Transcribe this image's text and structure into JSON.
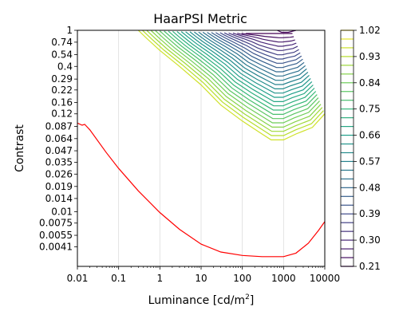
{
  "chart_data": {
    "type": "contour",
    "title": "HaarPSI Metric",
    "xlabel": "Luminance [cd/m",
    "xlabel_sup": "2",
    "xlabel_end": "]",
    "ylabel": "Contrast",
    "xscale": "log",
    "yscale": "log",
    "xlim": [
      0.01,
      10000
    ],
    "ylim": [
      0.0025,
      1
    ],
    "x_ticks": [
      0.01,
      0.1,
      1,
      10,
      100,
      1000,
      10000
    ],
    "x_tick_labels": [
      "0.01",
      "0.1",
      "1",
      "10",
      "100",
      "1000",
      "10000"
    ],
    "y_ticks": [
      1,
      0.74,
      0.54,
      0.4,
      0.29,
      0.22,
      0.16,
      0.12,
      0.087,
      0.064,
      0.047,
      0.035,
      0.026,
      0.019,
      0.014,
      0.01,
      0.0075,
      0.0055,
      0.0041
    ],
    "y_tick_labels": [
      "1",
      "0.74",
      "0.54",
      "0.4",
      "0.29",
      "0.22",
      "0.16",
      "0.12",
      "0.087",
      "0.064",
      "0.047",
      "0.035",
      "0.026",
      "0.019",
      "0.014",
      "0.01",
      "0.0075",
      "0.0055",
      "0.0041"
    ],
    "grid": "vertical",
    "colorbar": {
      "colormap": "viridis",
      "min": 0.21,
      "max": 1.02,
      "levels": 28,
      "tick_values": [
        1.02,
        0.93,
        0.84,
        0.75,
        0.66,
        0.57,
        0.48,
        0.39,
        0.3,
        0.21
      ],
      "tick_labels": [
        "1.02",
        "0.93",
        "0.84",
        "0.75",
        "0.66",
        "0.57",
        "0.48",
        "0.39",
        "0.30",
        "0.21"
      ]
    },
    "contours": {
      "num_levels": 26,
      "valley_luminance": 900,
      "outer_contour": {
        "left": [
          [
            0.3,
            1
          ],
          [
            0.5,
            0.8
          ],
          [
            1,
            0.6
          ],
          [
            3,
            0.4
          ],
          [
            10,
            0.25
          ],
          [
            30,
            0.15
          ],
          [
            100,
            0.1
          ],
          [
            300,
            0.072
          ],
          [
            500,
            0.062
          ],
          [
            1000,
            0.062
          ],
          [
            2000,
            0.072
          ],
          [
            5000,
            0.085
          ],
          [
            10000,
            0.12
          ]
        ]
      },
      "inner_contour": [
        [
          700,
          1
        ],
        [
          900,
          0.95
        ],
        [
          1300,
          0.95
        ],
        [
          2000,
          1
        ]
      ]
    },
    "threshold_line": {
      "name": "",
      "color": "#ff0000",
      "points": [
        [
          0.01,
          0.095
        ],
        [
          0.013,
          0.09
        ],
        [
          0.015,
          0.092
        ],
        [
          0.02,
          0.08
        ],
        [
          0.05,
          0.045
        ],
        [
          0.1,
          0.03
        ],
        [
          0.3,
          0.017
        ],
        [
          1,
          0.0098
        ],
        [
          3,
          0.0064
        ],
        [
          10,
          0.0044
        ],
        [
          30,
          0.0036
        ],
        [
          100,
          0.0033
        ],
        [
          300,
          0.0032
        ],
        [
          1000,
          0.0032
        ],
        [
          2000,
          0.0035
        ],
        [
          4000,
          0.0045
        ],
        [
          7000,
          0.0062
        ],
        [
          10000,
          0.0078
        ]
      ]
    }
  }
}
